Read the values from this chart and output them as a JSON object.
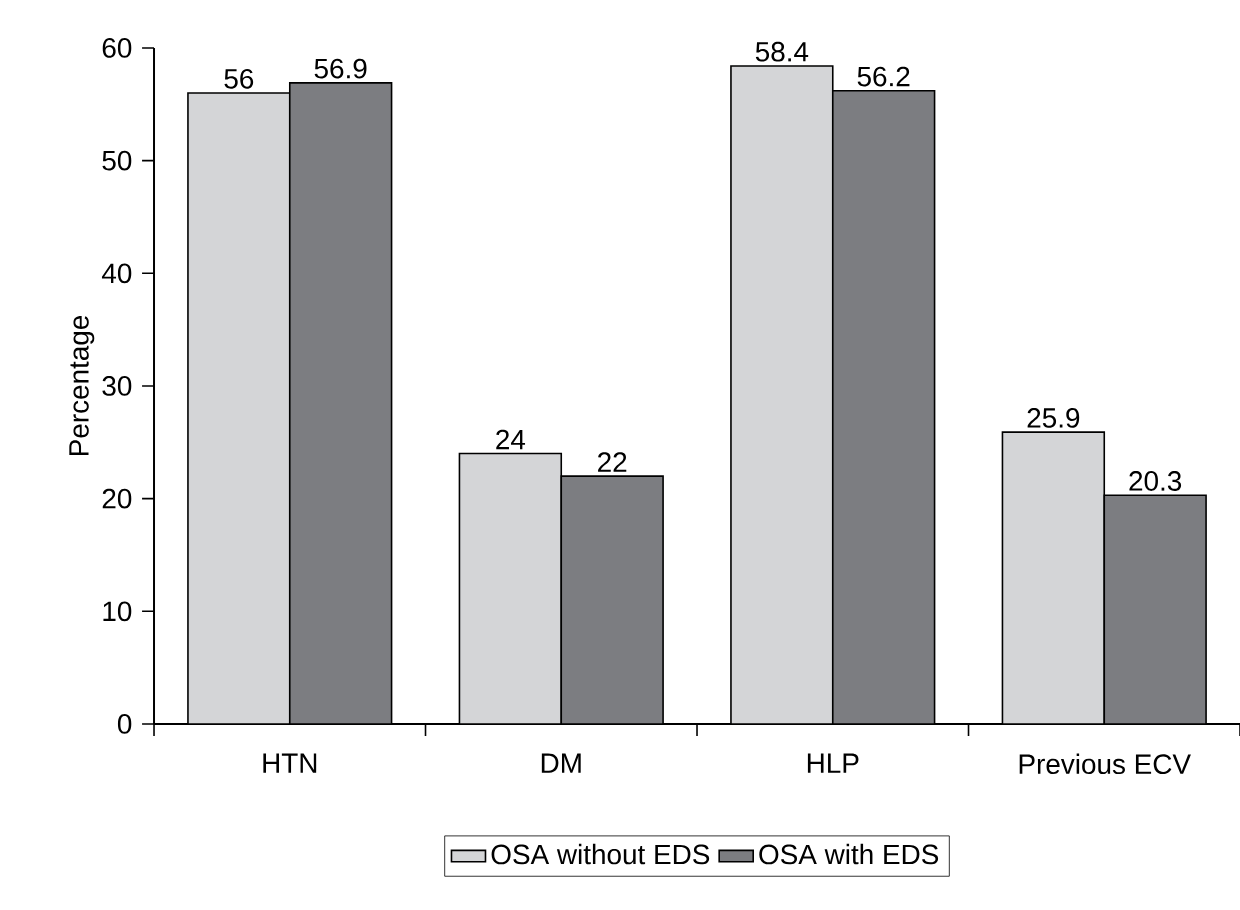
{
  "chart_data": {
    "type": "bar",
    "ylabel": "Percentage",
    "categories": [
      "HTN",
      "DM",
      "HLP",
      "Previous ECV"
    ],
    "series": [
      {
        "name": "OSA without EDS",
        "color": "#d4d5d7",
        "values": [
          56,
          24,
          58.4,
          25.9
        ]
      },
      {
        "name": "OSA with EDS",
        "color": "#7c7d81",
        "values": [
          56.9,
          22,
          56.2,
          20.3
        ]
      }
    ],
    "ylim": [
      0,
      60
    ],
    "yticks": [
      0,
      10,
      20,
      30,
      40,
      50,
      60
    ],
    "data_labels": true,
    "legend": "bottom",
    "grid": false
  }
}
